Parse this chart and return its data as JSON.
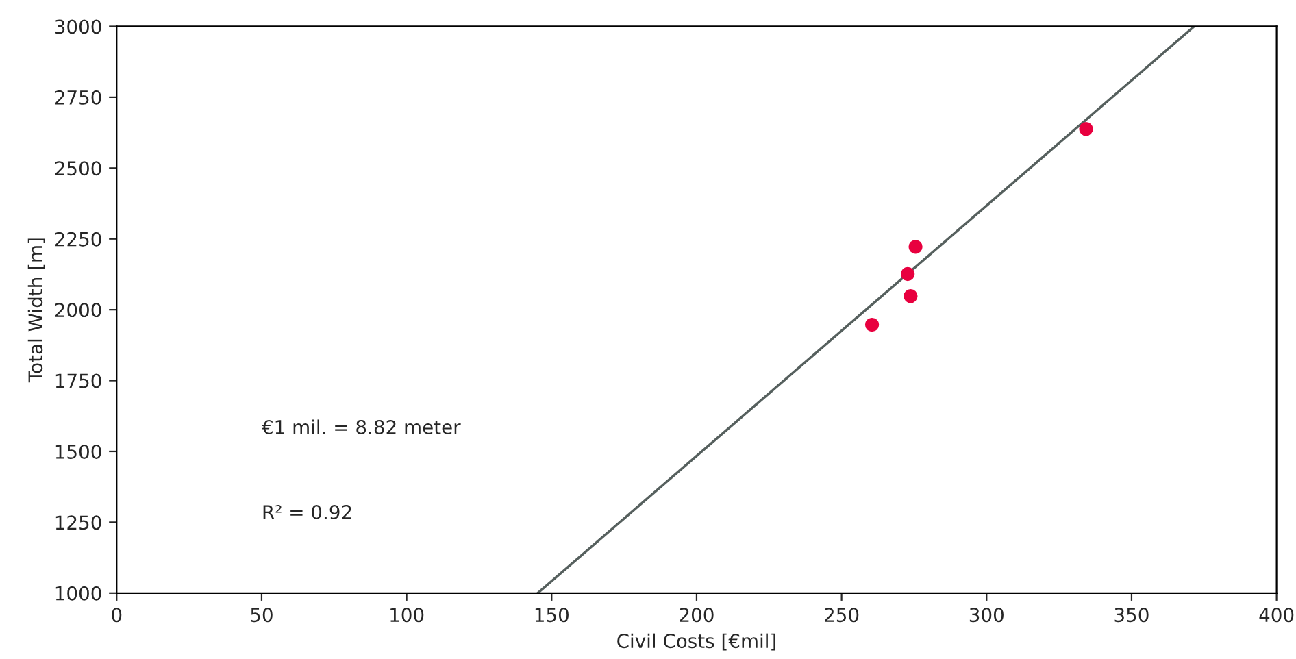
{
  "chart_data": {
    "type": "scatter",
    "xlabel": "Civil Costs [€mil]",
    "ylabel": "Total Width [m]",
    "x": [
      334.3,
      275.5,
      272.8,
      273.8,
      260.5
    ],
    "series": [
      {
        "color": "#e8003f",
        "marker": "circle",
        "values": [
          2638,
          2222,
          2126,
          2048,
          1947
        ]
      },
      {
        "type": "line",
        "color": "#56605e",
        "x": [
          145.2,
          371.6
        ],
        "values": [
          1000,
          3000
        ]
      }
    ],
    "annotations": [
      "€1 mil. = 8.82 meter",
      "R² = 0.92"
    ],
    "xlim": [
      0,
      400
    ],
    "ylim": [
      1000,
      3000
    ],
    "xticks": [
      0,
      50,
      100,
      150,
      200,
      250,
      300,
      350,
      400
    ],
    "yticks": [
      1000,
      1250,
      1500,
      1750,
      2000,
      2250,
      2500,
      2750,
      3000
    ],
    "grid": false,
    "legend": false
  }
}
